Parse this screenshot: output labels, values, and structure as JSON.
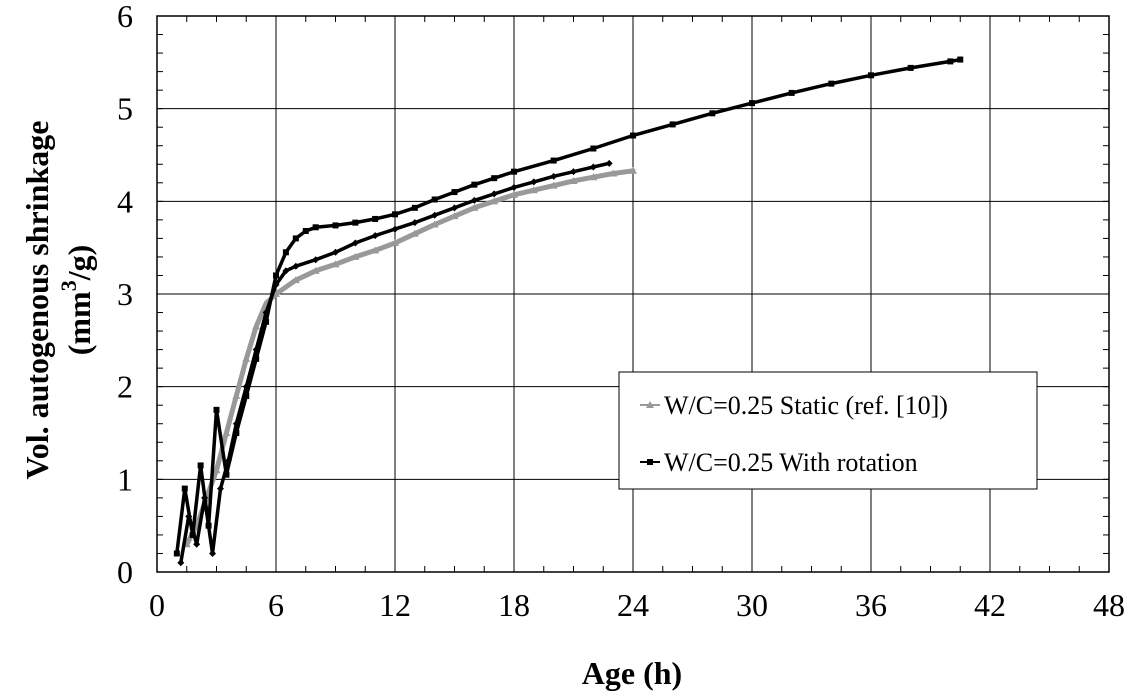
{
  "chart_data": {
    "type": "line",
    "title": "",
    "xlabel": "Age (h)",
    "ylabel": {
      "line1": "Vol. autogenous shrinkage",
      "line2_prefix": "(mm",
      "line2_sup": "3",
      "line2_suffix": "/g)"
    },
    "xlim": [
      0,
      48
    ],
    "ylim": [
      0,
      6
    ],
    "x_ticks": [
      0,
      6,
      12,
      18,
      24,
      30,
      36,
      42,
      48
    ],
    "y_ticks": [
      0,
      1,
      2,
      3,
      4,
      5,
      6
    ],
    "x_minor_step": 1.5,
    "y_minor_step": 0.2,
    "grid": true,
    "legend": {
      "placement": "center-right"
    },
    "series": [
      {
        "name": "W/C=0.25 Static (ref. [10])",
        "color": "#999999",
        "marker": "triangle",
        "x": [
          1.5,
          2.0,
          2.5,
          3.0,
          3.5,
          4.0,
          4.5,
          5.0,
          5.5,
          6.0,
          7.0,
          8.0,
          9.0,
          10.0,
          11.0,
          12.0,
          13.0,
          14.0,
          15.0,
          16.0,
          17.0,
          18.0,
          19.0,
          20.0,
          21.0,
          22.0,
          23.0,
          24.0
        ],
        "y": [
          0.3,
          0.5,
          0.8,
          1.1,
          1.5,
          1.9,
          2.3,
          2.65,
          2.9,
          3.0,
          3.15,
          3.25,
          3.32,
          3.4,
          3.47,
          3.55,
          3.65,
          3.75,
          3.84,
          3.93,
          4.0,
          4.07,
          4.12,
          4.17,
          4.22,
          4.26,
          4.3,
          4.33
        ]
      },
      {
        "name": "W/C=0.25 With rotation",
        "color": "#000000",
        "marker": "square",
        "x": [
          1.0,
          1.4,
          1.8,
          2.2,
          2.6,
          3.0,
          3.5,
          4.0,
          4.5,
          5.0,
          5.5,
          6.0,
          6.5,
          7.0,
          7.5,
          8.0,
          9.0,
          10.0,
          11.0,
          12.0,
          13.0,
          14.0,
          15.0,
          16.0,
          17.0,
          18.0,
          20.0,
          22.0,
          24.0,
          26.0,
          28.0,
          30.0,
          32.0,
          34.0,
          36.0,
          38.0,
          40.0,
          40.5
        ],
        "y": [
          0.2,
          0.9,
          0.4,
          1.15,
          0.5,
          1.75,
          1.05,
          1.5,
          1.9,
          2.3,
          2.7,
          3.2,
          3.45,
          3.6,
          3.68,
          3.72,
          3.74,
          3.77,
          3.81,
          3.86,
          3.93,
          4.02,
          4.1,
          4.18,
          4.25,
          4.32,
          4.44,
          4.57,
          4.71,
          4.83,
          4.95,
          5.06,
          5.17,
          5.27,
          5.36,
          5.44,
          5.51,
          5.53
        ]
      },
      {
        "name": "",
        "color": "#000000",
        "marker": "diamond",
        "x": [
          1.2,
          1.6,
          2.0,
          2.4,
          2.8,
          3.2,
          3.6,
          4.0,
          4.5,
          5.0,
          5.5,
          6.0,
          6.5,
          7.0,
          8.0,
          9.0,
          10.0,
          11.0,
          12.0,
          13.0,
          14.0,
          15.0,
          16.0,
          17.0,
          18.0,
          19.0,
          20.0,
          21.0,
          22.0,
          22.8
        ],
        "y": [
          0.1,
          0.6,
          0.3,
          0.8,
          0.2,
          0.9,
          1.2,
          1.6,
          2.0,
          2.4,
          2.8,
          3.1,
          3.25,
          3.3,
          3.37,
          3.45,
          3.55,
          3.63,
          3.7,
          3.77,
          3.85,
          3.93,
          4.01,
          4.08,
          4.15,
          4.21,
          4.27,
          4.32,
          4.37,
          4.41
        ]
      }
    ]
  }
}
